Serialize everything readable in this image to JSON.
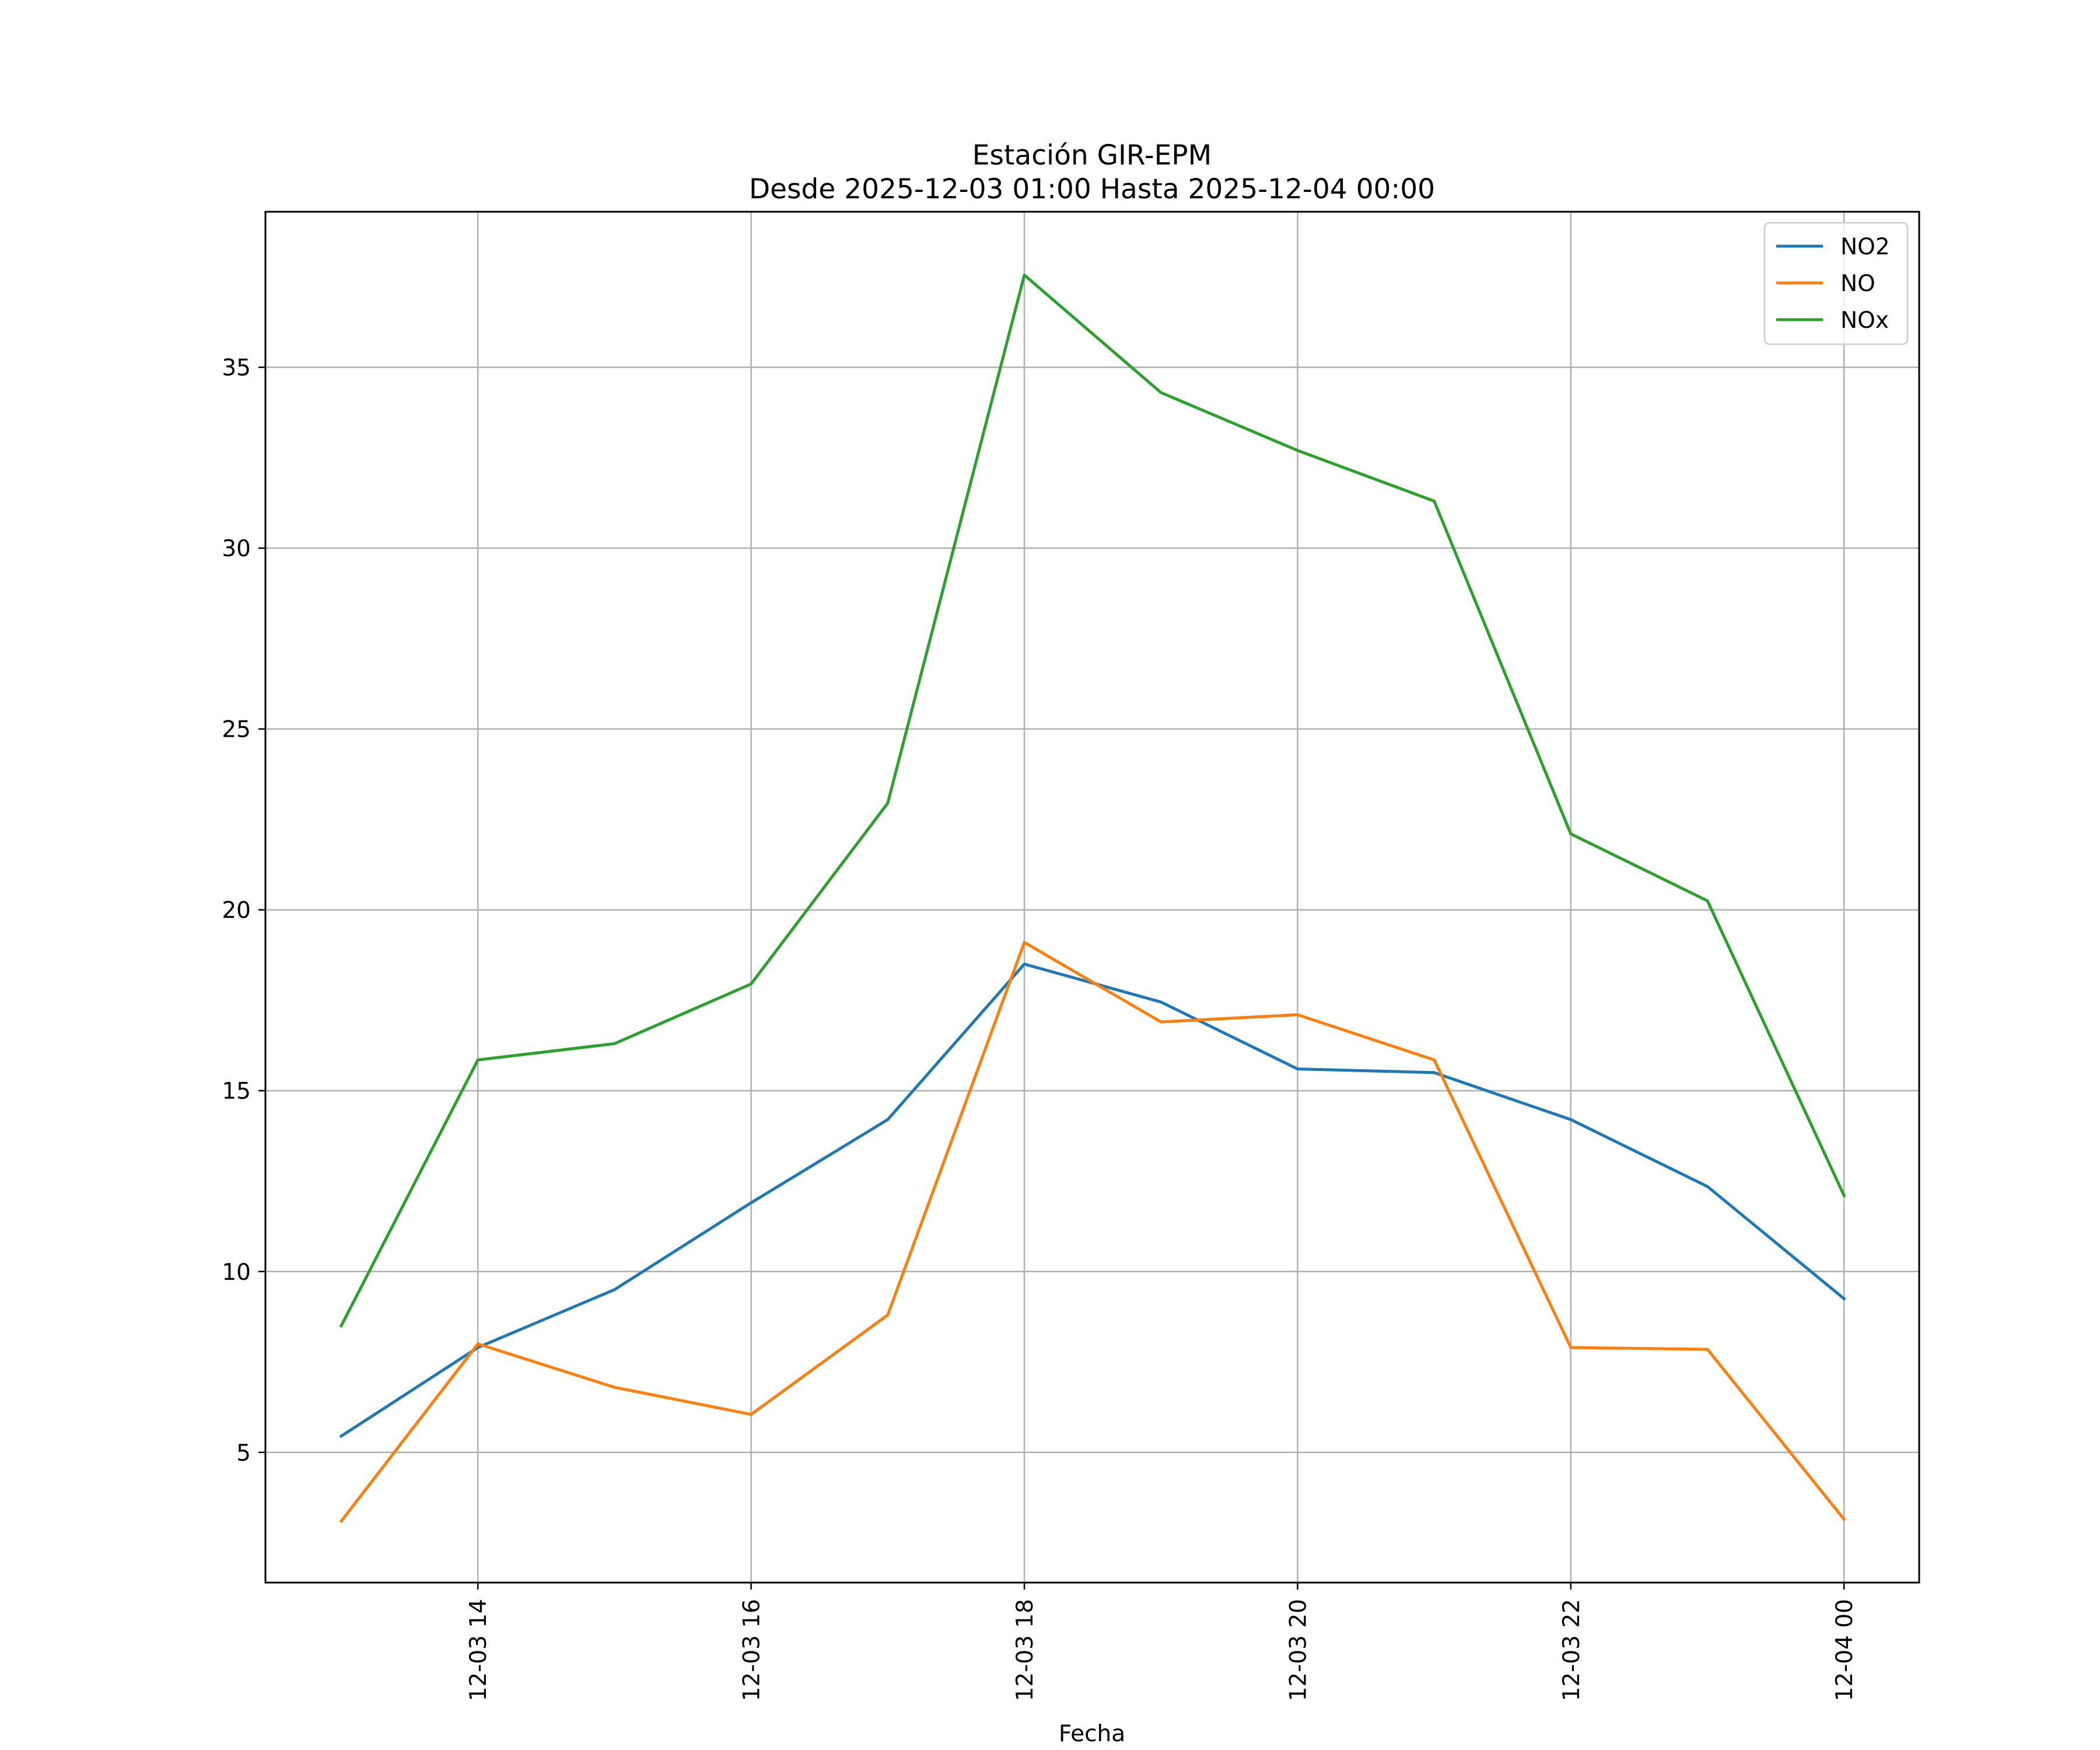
{
  "chart_data": {
    "type": "line",
    "title": "Estación GIR-EPM",
    "subtitle": "Desde 2025-12-03 01:00 Hasta 2025-12-04 00:00",
    "xlabel": "Fecha",
    "ylabel": "",
    "x": [
      "12-03 13",
      "12-03 14",
      "12-03 15",
      "12-03 16",
      "12-03 17",
      "12-03 18",
      "12-03 19",
      "12-03 20",
      "12-03 21",
      "12-03 22",
      "12-03 23",
      "12-04 00"
    ],
    "x_ticks": [
      "12-03 14",
      "12-03 16",
      "12-03 18",
      "12-03 20",
      "12-03 22",
      "12-04 00"
    ],
    "y_ticks": [
      5,
      10,
      15,
      20,
      25,
      30,
      35
    ],
    "ylim": [
      1.4,
      39.3
    ],
    "grid": true,
    "legend_position": "top-right",
    "series": [
      {
        "name": "NO2",
        "color": "#1f77b4",
        "values": [
          5.45,
          7.9,
          9.5,
          11.9,
          14.2,
          18.5,
          17.45,
          15.6,
          15.5,
          14.2,
          12.35,
          9.25
        ]
      },
      {
        "name": "NO",
        "color": "#ff7f0e",
        "values": [
          3.1,
          8.0,
          6.8,
          6.05,
          8.8,
          19.1,
          16.9,
          17.1,
          15.85,
          7.9,
          7.85,
          3.15
        ]
      },
      {
        "name": "NOx",
        "color": "#2ca02c",
        "values": [
          8.5,
          15.85,
          16.3,
          17.95,
          22.95,
          37.55,
          34.3,
          32.7,
          31.3,
          22.1,
          20.25,
          12.1
        ]
      }
    ]
  }
}
